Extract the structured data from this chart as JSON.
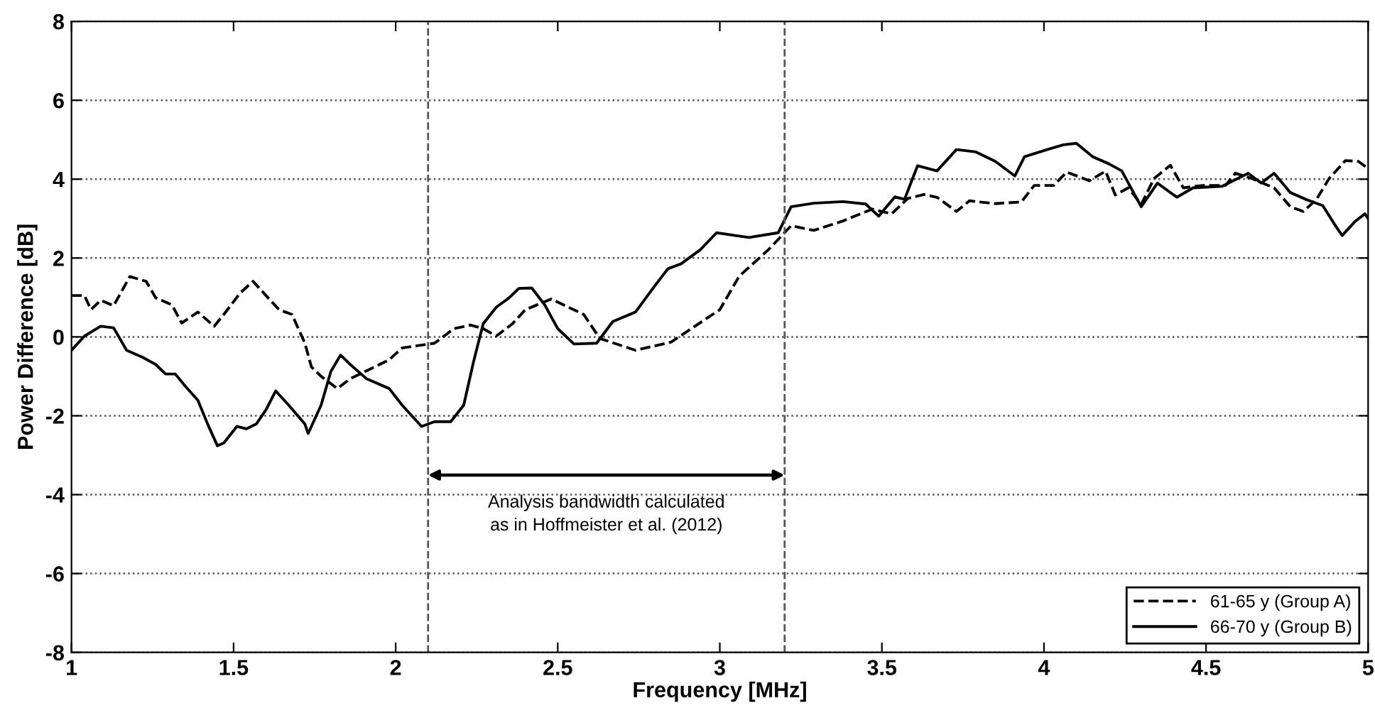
{
  "chart_data": {
    "type": "line",
    "xlabel": "Frequency [MHz]",
    "ylabel": "Power Difference [dB]",
    "xlim": [
      1,
      5
    ],
    "ylim": [
      -8,
      8
    ],
    "xticks": [
      1,
      1.5,
      2,
      2.5,
      3,
      3.5,
      4,
      4.5,
      5
    ],
    "yticks": [
      -8,
      -6,
      -4,
      -2,
      0,
      2,
      4,
      6,
      8
    ],
    "grid": "y",
    "legend": "bottom right",
    "series": [
      {
        "name": "61-65 y (Group A)",
        "color": "#000000",
        "line_style": "dashed",
        "x": [
          1.0,
          1.04,
          1.06,
          1.09,
          1.13,
          1.18,
          1.23,
          1.26,
          1.31,
          1.34,
          1.39,
          1.44,
          1.47,
          1.52,
          1.56,
          1.6,
          1.64,
          1.68,
          1.72,
          1.74,
          1.77,
          1.82,
          1.86,
          1.92,
          1.98,
          2.02,
          2.12,
          2.18,
          2.23,
          2.27,
          2.31,
          2.36,
          2.4,
          2.48,
          2.58,
          2.63,
          2.74,
          2.85,
          3.0,
          3.06,
          3.15,
          3.22,
          3.29,
          3.38,
          3.47,
          3.53,
          3.58,
          3.63,
          3.67,
          3.73,
          3.77,
          3.85,
          3.93,
          3.97,
          4.03,
          4.07,
          4.14,
          4.19,
          4.22,
          4.26,
          4.3,
          4.34,
          4.39,
          4.43,
          4.49,
          4.56,
          4.59,
          4.64,
          4.71,
          4.76,
          4.8,
          4.84,
          4.88,
          4.93,
          4.97,
          5.0
        ],
        "values": [
          1.05,
          1.05,
          0.69,
          0.93,
          0.79,
          1.53,
          1.41,
          0.99,
          0.81,
          0.35,
          0.63,
          0.27,
          0.57,
          1.11,
          1.41,
          1.05,
          0.69,
          0.57,
          -0.16,
          -0.76,
          -1.0,
          -1.31,
          -1.06,
          -0.82,
          -0.58,
          -0.28,
          -0.16,
          0.21,
          0.3,
          0.21,
          0.02,
          0.33,
          0.69,
          0.96,
          0.57,
          -0.04,
          -0.34,
          -0.13,
          0.69,
          1.54,
          2.21,
          2.82,
          2.7,
          2.94,
          3.24,
          3.12,
          3.51,
          3.61,
          3.54,
          3.18,
          3.45,
          3.38,
          3.42,
          3.84,
          3.84,
          4.18,
          3.96,
          4.2,
          3.6,
          3.78,
          3.36,
          4.02,
          4.35,
          3.78,
          3.84,
          3.84,
          4.15,
          4.02,
          3.78,
          3.3,
          3.18,
          3.48,
          4.02,
          4.47,
          4.45,
          4.27
        ]
      },
      {
        "name": "66-70 y (Group B)",
        "color": "#000000",
        "line_style": "solid",
        "x": [
          1.0,
          1.04,
          1.09,
          1.13,
          1.17,
          1.22,
          1.26,
          1.29,
          1.32,
          1.35,
          1.39,
          1.42,
          1.45,
          1.47,
          1.51,
          1.54,
          1.57,
          1.6,
          1.63,
          1.67,
          1.72,
          1.73,
          1.77,
          1.8,
          1.83,
          1.86,
          1.91,
          1.98,
          2.02,
          2.08,
          2.12,
          2.17,
          2.21,
          2.24,
          2.27,
          2.31,
          2.35,
          2.38,
          2.42,
          2.46,
          2.5,
          2.55,
          2.62,
          2.67,
          2.74,
          2.8,
          2.84,
          2.88,
          2.94,
          2.99,
          3.04,
          3.09,
          3.18,
          3.22,
          3.29,
          3.38,
          3.45,
          3.49,
          3.54,
          3.57,
          3.61,
          3.67,
          3.73,
          3.79,
          3.85,
          3.91,
          3.94,
          4.01,
          4.06,
          4.1,
          4.15,
          4.2,
          4.24,
          4.3,
          4.35,
          4.41,
          4.46,
          4.55,
          4.63,
          4.67,
          4.71,
          4.76,
          4.81,
          4.86,
          4.9,
          4.92,
          4.96,
          4.99,
          5.0
        ],
        "values": [
          -0.34,
          0.02,
          0.27,
          0.23,
          -0.34,
          -0.52,
          -0.7,
          -0.94,
          -0.94,
          -1.24,
          -1.61,
          -2.21,
          -2.76,
          -2.69,
          -2.27,
          -2.33,
          -2.21,
          -1.85,
          -1.37,
          -1.73,
          -2.21,
          -2.45,
          -1.73,
          -0.88,
          -0.46,
          -0.7,
          -1.06,
          -1.31,
          -1.73,
          -2.27,
          -2.15,
          -2.15,
          -1.73,
          -0.64,
          0.33,
          0.75,
          0.99,
          1.23,
          1.24,
          0.81,
          0.21,
          -0.18,
          -0.16,
          0.39,
          0.63,
          1.3,
          1.73,
          1.85,
          2.21,
          2.64,
          2.58,
          2.52,
          2.64,
          3.3,
          3.39,
          3.43,
          3.37,
          3.06,
          3.55,
          3.49,
          4.34,
          4.21,
          4.75,
          4.69,
          4.45,
          4.08,
          4.57,
          4.75,
          4.87,
          4.91,
          4.57,
          4.39,
          4.21,
          3.3,
          3.9,
          3.54,
          3.78,
          3.82,
          4.15,
          3.9,
          4.15,
          3.66,
          3.48,
          3.33,
          2.81,
          2.57,
          2.93,
          3.12,
          3.0
        ]
      }
    ],
    "ref_lines": [
      {
        "axis": "x",
        "value": 2.1,
        "color": "#555555",
        "line_style": "dashed"
      },
      {
        "axis": "x",
        "value": 3.2,
        "color": "#555555",
        "line_style": "dashed"
      }
    ],
    "annotations": [
      "Analysis bandwidth calculated\nas in Hoffmeister et al. (2012)"
    ]
  }
}
